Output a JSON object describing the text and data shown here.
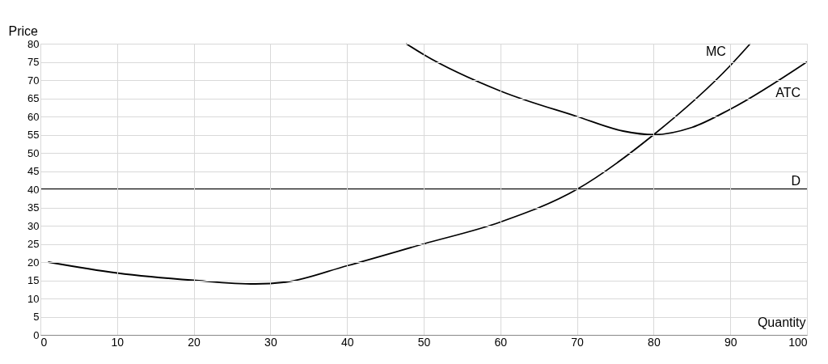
{
  "chart_data": {
    "type": "line",
    "xlabel": "Quantity",
    "ylabel": "Price",
    "xlim": [
      0,
      100
    ],
    "xticks": [
      0,
      10,
      20,
      30,
      40,
      50,
      60,
      70,
      80,
      90,
      100
    ],
    "ylim": [
      0,
      80
    ],
    "yticks": [
      0,
      5,
      10,
      15,
      20,
      25,
      30,
      35,
      40,
      45,
      50,
      55,
      60,
      65,
      70,
      75,
      80
    ],
    "grid": true,
    "legend": false,
    "marker": "none",
    "line_style": "solid",
    "series": [
      {
        "name": "MC",
        "color": "#000000",
        "x": [
          1,
          10,
          20,
          28,
          32,
          40,
          50,
          60,
          70,
          80,
          90,
          92.6
        ],
        "values": [
          20,
          17,
          15,
          14,
          14.5,
          19,
          25,
          31,
          40,
          55,
          74,
          80
        ]
      },
      {
        "name": "ATC",
        "color": "#000000",
        "x": [
          47.7,
          50,
          60,
          70,
          76,
          80,
          85,
          90,
          100
        ],
        "values": [
          80,
          77,
          67,
          60,
          56,
          55,
          57,
          62,
          75
        ]
      },
      {
        "name": "D",
        "color": "#000000",
        "x": [
          0,
          100
        ],
        "values": [
          40,
          40
        ]
      }
    ]
  }
}
